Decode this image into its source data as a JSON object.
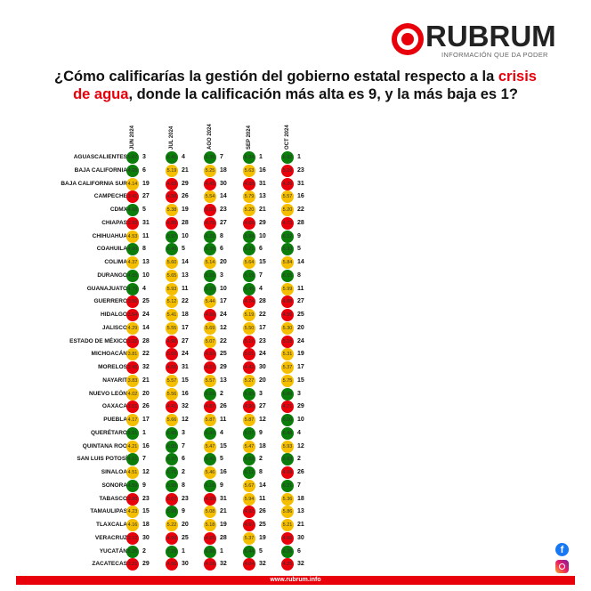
{
  "logo": {
    "brand": "RUBRUM",
    "tagline": "INFORMACIÓN QUE DA PODER"
  },
  "title": {
    "part1": "¿Cómo calificarías la gestión del gobierno estatal respecto a la ",
    "highlight1": "crisis",
    "br": "",
    "highlight2": "de agua",
    "part2": ", donde la calificación más alta es 9, y la más baja es 1?"
  },
  "colors": {
    "g": "#0a7d0a",
    "y": "#f5bf00",
    "r": "#e8000b"
  },
  "months": [
    "JUN 2024",
    "JUL 2024",
    "AGO 2024",
    "SEP 2024",
    "OCT 2024"
  ],
  "rows": [
    {
      "state": "AGUASCALIENTES",
      "cells": [
        [
          "5.07",
          "3",
          "g"
        ],
        [
          "6.41",
          "4",
          "g"
        ],
        [
          "6.35",
          "7",
          "g"
        ],
        [
          "6.94",
          "1",
          "g"
        ],
        [
          "6.92",
          "1",
          "g"
        ]
      ]
    },
    {
      "state": "BAJA CALIFORNIA",
      "cells": [
        [
          "4.65",
          "6",
          "g"
        ],
        [
          "5.19",
          "21",
          "y"
        ],
        [
          "5.25",
          "18",
          "y"
        ],
        [
          "5.63",
          "16",
          "y"
        ],
        [
          "5.19",
          "23",
          "r"
        ]
      ]
    },
    {
      "state": "BAJA CALIFORNIA SUR",
      "cells": [
        [
          "4.14",
          "19",
          "y"
        ],
        [
          "4.63",
          "29",
          "r"
        ],
        [
          "4.45",
          "30",
          "r"
        ],
        [
          "4.38",
          "31",
          "r"
        ],
        [
          "4.26",
          "31",
          "r"
        ]
      ]
    },
    {
      "state": "CAMPECHE",
      "cells": [
        [
          "3.41",
          "27",
          "r"
        ],
        [
          "4.98",
          "26",
          "r"
        ],
        [
          "5.54",
          "14",
          "y"
        ],
        [
          "5.79",
          "13",
          "y"
        ],
        [
          "5.57",
          "16",
          "y"
        ]
      ]
    },
    {
      "state": "CDMX",
      "cells": [
        [
          "4.68",
          "5",
          "g"
        ],
        [
          "5.38",
          "19",
          "y"
        ],
        [
          "5.01",
          "23",
          "r"
        ],
        [
          "5.20",
          "21",
          "y"
        ],
        [
          "5.20",
          "22",
          "y"
        ]
      ]
    },
    {
      "state": "CHIAPAS",
      "cells": [
        [
          "2.92",
          "31",
          "r"
        ],
        [
          "4.85",
          "28",
          "r"
        ],
        [
          "4.75",
          "27",
          "r"
        ],
        [
          "4.68",
          "29",
          "r"
        ],
        [
          "4.72",
          "28",
          "r"
        ]
      ]
    },
    {
      "state": "CHIHUAHUA",
      "cells": [
        [
          "4.53",
          "11",
          "y"
        ],
        [
          "5.97",
          "10",
          "g"
        ],
        [
          "6.22",
          "8",
          "g"
        ],
        [
          "5.98",
          "10",
          "g"
        ],
        [
          "6.12",
          "9",
          "g"
        ]
      ]
    },
    {
      "state": "COAHUILA",
      "cells": [
        [
          "4.60",
          "8",
          "g"
        ],
        [
          "6.40",
          "5",
          "g"
        ],
        [
          "6.38",
          "6",
          "g"
        ],
        [
          "6.21",
          "6",
          "g"
        ],
        [
          "6.33",
          "5",
          "g"
        ]
      ]
    },
    {
      "state": "COLIMA",
      "cells": [
        [
          "4.37",
          "13",
          "y"
        ],
        [
          "5.60",
          "14",
          "y"
        ],
        [
          "5.14",
          "20",
          "y"
        ],
        [
          "5.64",
          "15",
          "y"
        ],
        [
          "5.84",
          "14",
          "y"
        ]
      ]
    },
    {
      "state": "DURANGO",
      "cells": [
        [
          "4.55",
          "10",
          "g"
        ],
        [
          "5.65",
          "13",
          "y"
        ],
        [
          "6.55",
          "3",
          "g"
        ],
        [
          "6.19",
          "7",
          "g"
        ],
        [
          "6.15",
          "8",
          "g"
        ]
      ]
    },
    {
      "state": "GUANAJUATO",
      "cells": [
        [
          "4.79",
          "4",
          "g"
        ],
        [
          "5.93",
          "11",
          "y"
        ],
        [
          "5.93",
          "10",
          "g"
        ],
        [
          "6.45",
          "4",
          "g"
        ],
        [
          "5.99",
          "11",
          "y"
        ]
      ]
    },
    {
      "state": "GUERRERO",
      "cells": [
        [
          "3.56",
          "25",
          "r"
        ],
        [
          "5.12",
          "22",
          "y"
        ],
        [
          "5.44",
          "17",
          "y"
        ],
        [
          "4.74",
          "28",
          "r"
        ],
        [
          "4.88",
          "27",
          "r"
        ]
      ]
    },
    {
      "state": "HIDALGO",
      "cells": [
        [
          "3.64",
          "24",
          "r"
        ],
        [
          "5.41",
          "18",
          "y"
        ],
        [
          "4.98",
          "24",
          "r"
        ],
        [
          "5.19",
          "22",
          "y"
        ],
        [
          "4.96",
          "25",
          "r"
        ]
      ]
    },
    {
      "state": "JALISCO",
      "cells": [
        [
          "4.29",
          "14",
          "y"
        ],
        [
          "5.55",
          "17",
          "y"
        ],
        [
          "5.69",
          "12",
          "y"
        ],
        [
          "5.50",
          "17",
          "y"
        ],
        [
          "5.30",
          "20",
          "y"
        ]
      ]
    },
    {
      "state": "ESTADO DE MÉXICO",
      "cells": [
        [
          "3.32",
          "28",
          "r"
        ],
        [
          "4.90",
          "27",
          "r"
        ],
        [
          "5.07",
          "22",
          "y"
        ],
        [
          "5.17",
          "23",
          "r"
        ],
        [
          "5.18",
          "24",
          "r"
        ]
      ]
    },
    {
      "state": "MICHOACÁN",
      "cells": [
        [
          "3.81",
          "22",
          "y"
        ],
        [
          "5.03",
          "24",
          "r"
        ],
        [
          "4.90",
          "25",
          "r"
        ],
        [
          "5.01",
          "24",
          "r"
        ],
        [
          "5.31",
          "19",
          "y"
        ]
      ]
    },
    {
      "state": "MORELOS",
      "cells": [
        [
          "2.45",
          "32",
          "r"
        ],
        [
          "4.55",
          "31",
          "r"
        ],
        [
          "4.57",
          "29",
          "r"
        ],
        [
          "4.42",
          "30",
          "r"
        ],
        [
          "5.37",
          "17",
          "y"
        ]
      ]
    },
    {
      "state": "NAYARIT",
      "cells": [
        [
          "3.83",
          "21",
          "y"
        ],
        [
          "5.57",
          "15",
          "y"
        ],
        [
          "5.57",
          "13",
          "y"
        ],
        [
          "5.27",
          "20",
          "y"
        ],
        [
          "5.75",
          "15",
          "y"
        ]
      ]
    },
    {
      "state": "NUEVO LEÓN",
      "cells": [
        [
          "4.02",
          "20",
          "y"
        ],
        [
          "5.56",
          "16",
          "y"
        ],
        [
          "6.59",
          "2",
          "g"
        ],
        [
          "6.65",
          "3",
          "g"
        ],
        [
          "6.66",
          "3",
          "g"
        ]
      ]
    },
    {
      "state": "OAXACA",
      "cells": [
        [
          "3.51",
          "26",
          "r"
        ],
        [
          "4.41",
          "32",
          "r"
        ],
        [
          "4.87",
          "26",
          "r"
        ],
        [
          "4.90",
          "27",
          "r"
        ],
        [
          "4.71",
          "29",
          "r"
        ]
      ]
    },
    {
      "state": "PUEBLA",
      "cells": [
        [
          "4.17",
          "17",
          "y"
        ],
        [
          "5.66",
          "12",
          "y"
        ],
        [
          "5.87",
          "11",
          "y"
        ],
        [
          "5.87",
          "12",
          "y"
        ],
        [
          "6.10",
          "10",
          "g"
        ]
      ]
    },
    {
      "state": "QUERÉTARO",
      "cells": [
        [
          "5.61",
          "1",
          "g"
        ],
        [
          "6.65",
          "3",
          "g"
        ],
        [
          "6.43",
          "4",
          "g"
        ],
        [
          "6.07",
          "9",
          "g"
        ],
        [
          "6.48",
          "4",
          "g"
        ]
      ]
    },
    {
      "state": "QUINTANA ROO",
      "cells": [
        [
          "4.21",
          "16",
          "y"
        ],
        [
          "6.00",
          "7",
          "g"
        ],
        [
          "5.47",
          "15",
          "y"
        ],
        [
          "5.47",
          "18",
          "y"
        ],
        [
          "5.93",
          "12",
          "y"
        ]
      ]
    },
    {
      "state": "SAN LUIS POTOSÍ",
      "cells": [
        [
          "4.61",
          "7",
          "g"
        ],
        [
          "6.37",
          "6",
          "g"
        ],
        [
          "6.40",
          "5",
          "g"
        ],
        [
          "6.68",
          "2",
          "g"
        ],
        [
          "6.69",
          "2",
          "g"
        ]
      ]
    },
    {
      "state": "SINALOA",
      "cells": [
        [
          "4.51",
          "12",
          "y"
        ],
        [
          "6.71",
          "2",
          "g"
        ],
        [
          "5.46",
          "16",
          "y"
        ],
        [
          "6.12",
          "8",
          "g"
        ],
        [
          "4.99",
          "26",
          "r"
        ]
      ]
    },
    {
      "state": "SONORA",
      "cells": [
        [
          "4.59",
          "9",
          "g"
        ],
        [
          "5.99",
          "8",
          "g"
        ],
        [
          "6.16",
          "9",
          "g"
        ],
        [
          "5.67",
          "14",
          "y"
        ],
        [
          "6.21",
          "7",
          "g"
        ]
      ]
    },
    {
      "state": "TABASCO",
      "cells": [
        [
          "3.80",
          "23",
          "r"
        ],
        [
          "5.07",
          "23",
          "r"
        ],
        [
          "4.38",
          "31",
          "r"
        ],
        [
          "5.94",
          "11",
          "y"
        ],
        [
          "5.36",
          "18",
          "y"
        ]
      ]
    },
    {
      "state": "TAMAULIPAS",
      "cells": [
        [
          "4.23",
          "15",
          "y"
        ],
        [
          "5.99",
          "9",
          "g"
        ],
        [
          "5.08",
          "21",
          "y"
        ],
        [
          "4.92",
          "26",
          "r"
        ],
        [
          "5.86",
          "13",
          "y"
        ]
      ]
    },
    {
      "state": "TLAXCALA",
      "cells": [
        [
          "4.16",
          "18",
          "y"
        ],
        [
          "5.22",
          "20",
          "y"
        ],
        [
          "5.18",
          "19",
          "y"
        ],
        [
          "4.97",
          "25",
          "r"
        ],
        [
          "5.21",
          "21",
          "y"
        ]
      ]
    },
    {
      "state": "VERACRUZ",
      "cells": [
        [
          "3.12",
          "30",
          "r"
        ],
        [
          "4.99",
          "25",
          "r"
        ],
        [
          "4.65",
          "28",
          "r"
        ],
        [
          "5.37",
          "19",
          "y"
        ],
        [
          "4.66",
          "30",
          "r"
        ]
      ]
    },
    {
      "state": "YUCATÁN",
      "cells": [
        [
          "5.25",
          "2",
          "g"
        ],
        [
          "7.29",
          "1",
          "g"
        ],
        [
          "6.88",
          "1",
          "g"
        ],
        [
          "6.44",
          "5",
          "g"
        ],
        [
          "6.26",
          "6",
          "g"
        ]
      ]
    },
    {
      "state": "ZACATECAS",
      "cells": [
        [
          "3.21",
          "29",
          "r"
        ],
        [
          "4.56",
          "30",
          "r"
        ],
        [
          "4.18",
          "32",
          "r"
        ],
        [
          "4.04",
          "32",
          "r"
        ],
        [
          "4.25",
          "32",
          "r"
        ]
      ]
    }
  ],
  "footer": {
    "url": "www.rubrum.info"
  },
  "social": [
    "facebook-icon",
    "instagram-icon"
  ]
}
